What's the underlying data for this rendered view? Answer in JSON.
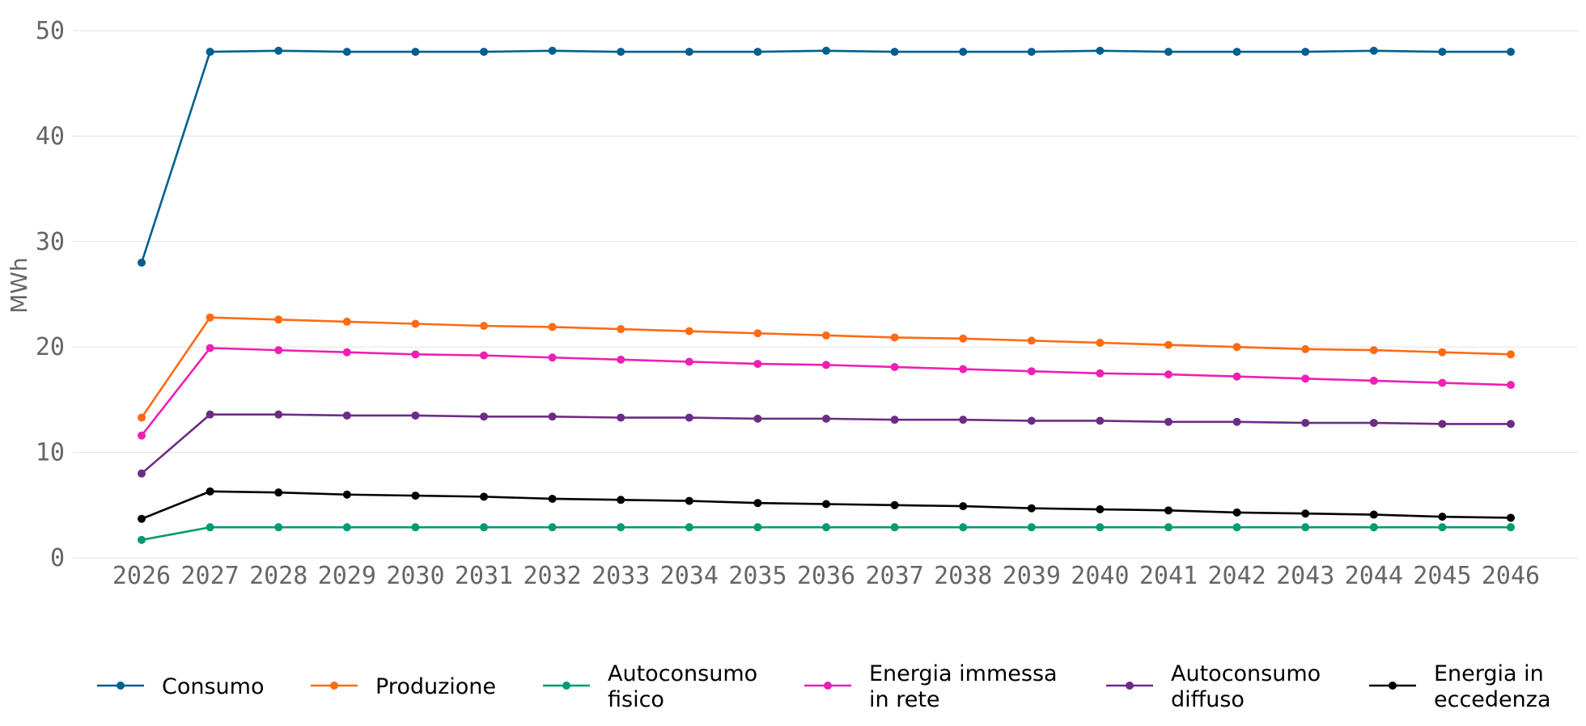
{
  "chart_data": {
    "type": "line",
    "title": "",
    "xlabel": "",
    "ylabel": "MWh",
    "ylim": [
      0,
      50
    ],
    "yticks": [
      "0",
      "10",
      "20",
      "30",
      "40",
      "50"
    ],
    "grid": true,
    "legend_position": "bottom",
    "x": [
      "2026",
      "2027",
      "2028",
      "2029",
      "2030",
      "2031",
      "2032",
      "2033",
      "2034",
      "2035",
      "2036",
      "2037",
      "2038",
      "2039",
      "2040",
      "2041",
      "2042",
      "2043",
      "2044",
      "2045",
      "2046"
    ],
    "series": [
      {
        "name": "Consumo",
        "legend_lines": [
          "Consumo"
        ],
        "color": "#005f8f",
        "values": [
          28.0,
          48.0,
          48.1,
          48.0,
          48.0,
          48.0,
          48.1,
          48.0,
          48.0,
          48.0,
          48.1,
          48.0,
          48.0,
          48.0,
          48.1,
          48.0,
          48.0,
          48.0,
          48.1,
          48.0,
          48.0
        ]
      },
      {
        "name": "Produzione",
        "legend_lines": [
          "Produzione"
        ],
        "color": "#ff6a13",
        "values": [
          13.3,
          22.8,
          22.6,
          22.4,
          22.2,
          22.0,
          21.9,
          21.7,
          21.5,
          21.3,
          21.1,
          20.9,
          20.8,
          20.6,
          20.4,
          20.2,
          20.0,
          19.8,
          19.7,
          19.5,
          19.3
        ]
      },
      {
        "name": "Autoconsumo fisico",
        "legend_lines": [
          "Autoconsumo",
          "fisico"
        ],
        "color": "#009b72",
        "values": [
          1.7,
          2.9,
          2.9,
          2.9,
          2.9,
          2.9,
          2.9,
          2.9,
          2.9,
          2.9,
          2.9,
          2.9,
          2.9,
          2.9,
          2.9,
          2.9,
          2.9,
          2.9,
          2.9,
          2.9,
          2.9
        ]
      },
      {
        "name": "Energia immessa in rete",
        "legend_lines": [
          "Energia immessa",
          "in rete"
        ],
        "color": "#ee1fb4",
        "values": [
          11.6,
          19.9,
          19.7,
          19.5,
          19.3,
          19.2,
          19.0,
          18.8,
          18.6,
          18.4,
          18.3,
          18.1,
          17.9,
          17.7,
          17.5,
          17.4,
          17.2,
          17.0,
          16.8,
          16.6,
          16.4
        ]
      },
      {
        "name": "Autoconsumo diffuso",
        "legend_lines": [
          "Autoconsumo",
          "diffuso"
        ],
        "color": "#6c2c85",
        "values": [
          8.0,
          13.6,
          13.6,
          13.5,
          13.5,
          13.4,
          13.4,
          13.3,
          13.3,
          13.2,
          13.2,
          13.1,
          13.1,
          13.0,
          13.0,
          12.9,
          12.9,
          12.8,
          12.8,
          12.7,
          12.7
        ]
      },
      {
        "name": "Energia in eccedenza",
        "legend_lines": [
          "Energia in",
          "eccedenza"
        ],
        "color": "#000000",
        "values": [
          3.7,
          6.3,
          6.2,
          6.0,
          5.9,
          5.8,
          5.6,
          5.5,
          5.4,
          5.2,
          5.1,
          5.0,
          4.9,
          4.7,
          4.6,
          4.5,
          4.3,
          4.2,
          4.1,
          3.9,
          3.8
        ]
      }
    ]
  }
}
